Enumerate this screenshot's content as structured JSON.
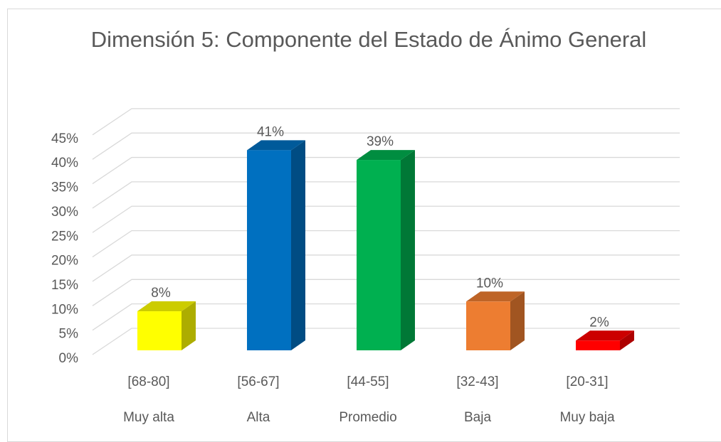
{
  "chart_data": {
    "type": "bar3d",
    "title": "Dimensión 5: Componente del Estado de Ánimo General",
    "categories": [
      "[68-80]",
      "[56-67]",
      "[44-55]",
      "[32-43]",
      "[20-31]"
    ],
    "category_descriptions": [
      "Muy alta",
      "Alta",
      "Promedio",
      "Baja",
      "Muy baja"
    ],
    "values": [
      8,
      41,
      39,
      10,
      2
    ],
    "value_labels": [
      "8%",
      "41%",
      "39%",
      "10%",
      "2%"
    ],
    "colors": [
      "#ffff00",
      "#0070c0",
      "#00b050",
      "#ed7d31",
      "#ff0000"
    ],
    "ylim": [
      0,
      45
    ],
    "yticks": [
      {
        "value": 0,
        "label": "0%"
      },
      {
        "value": 5,
        "label": "5%"
      },
      {
        "value": 10,
        "label": "10%"
      },
      {
        "value": 15,
        "label": "15%"
      },
      {
        "value": 20,
        "label": "20%"
      },
      {
        "value": 25,
        "label": "25%"
      },
      {
        "value": 30,
        "label": "30%"
      },
      {
        "value": 35,
        "label": "35%"
      },
      {
        "value": 40,
        "label": "40%"
      },
      {
        "value": 45,
        "label": "45%"
      }
    ],
    "grid": true
  }
}
